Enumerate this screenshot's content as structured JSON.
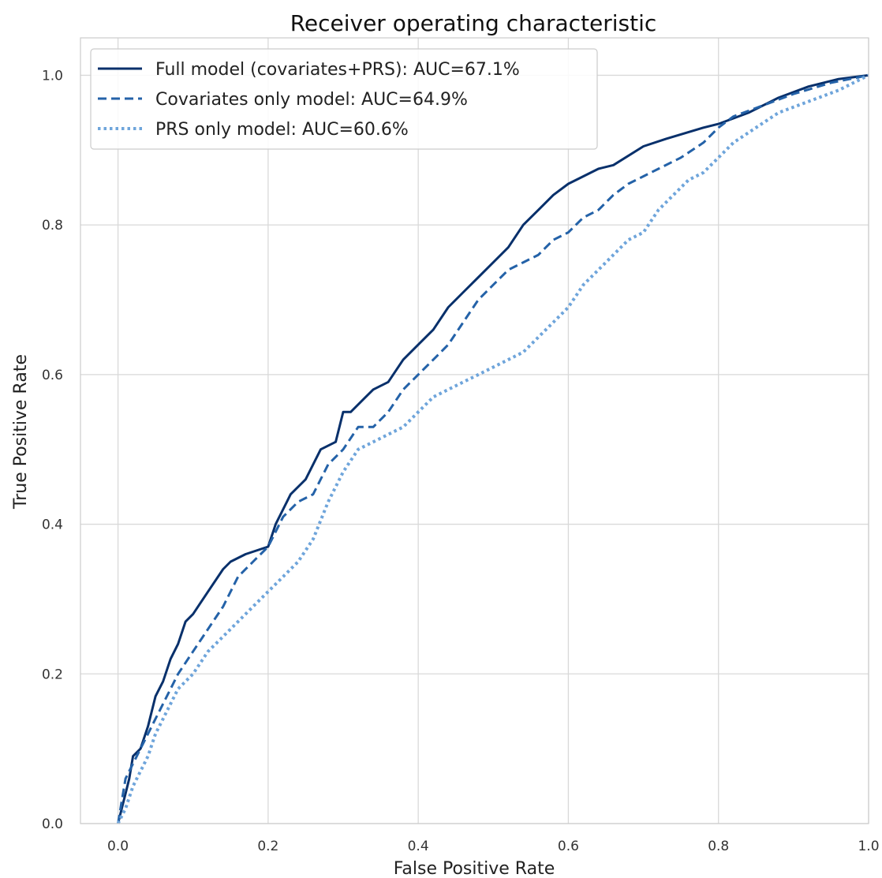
{
  "chart_data": {
    "type": "line",
    "title": "Receiver operating characteristic",
    "xlabel": "False Positive Rate",
    "ylabel": "True Positive Rate",
    "xlim": [
      -0.05,
      1.0
    ],
    "ylim": [
      0.0,
      1.05
    ],
    "xticks": [
      0.0,
      0.2,
      0.4,
      0.6,
      0.8,
      1.0
    ],
    "yticks": [
      0.0,
      0.2,
      0.4,
      0.6,
      0.8,
      1.0
    ],
    "xtick_labels": [
      "0.0",
      "0.2",
      "0.4",
      "0.6",
      "0.8",
      "1.0"
    ],
    "ytick_labels": [
      "0.0",
      "0.2",
      "0.4",
      "0.6",
      "0.8",
      "1.0"
    ],
    "grid": true,
    "legend_position": "top-left",
    "series": [
      {
        "name": "Full model (covariates+PRS): AUC=67.1%",
        "color": "#08306b",
        "dash": "solid",
        "x": [
          0.0,
          0.005,
          0.01,
          0.015,
          0.02,
          0.03,
          0.04,
          0.05,
          0.06,
          0.07,
          0.08,
          0.09,
          0.1,
          0.12,
          0.14,
          0.15,
          0.17,
          0.2,
          0.21,
          0.23,
          0.25,
          0.27,
          0.29,
          0.3,
          0.31,
          0.33,
          0.34,
          0.36,
          0.38,
          0.4,
          0.42,
          0.44,
          0.46,
          0.48,
          0.5,
          0.52,
          0.54,
          0.56,
          0.58,
          0.6,
          0.62,
          0.64,
          0.66,
          0.7,
          0.73,
          0.78,
          0.8,
          0.84,
          0.88,
          0.92,
          0.96,
          1.0
        ],
        "y": [
          0.0,
          0.02,
          0.04,
          0.06,
          0.09,
          0.1,
          0.13,
          0.17,
          0.19,
          0.22,
          0.24,
          0.27,
          0.28,
          0.31,
          0.34,
          0.35,
          0.36,
          0.37,
          0.4,
          0.44,
          0.46,
          0.5,
          0.51,
          0.55,
          0.55,
          0.57,
          0.58,
          0.59,
          0.62,
          0.64,
          0.66,
          0.69,
          0.71,
          0.73,
          0.75,
          0.77,
          0.8,
          0.82,
          0.84,
          0.855,
          0.865,
          0.875,
          0.88,
          0.905,
          0.915,
          0.93,
          0.935,
          0.95,
          0.97,
          0.985,
          0.995,
          1.0
        ]
      },
      {
        "name": "Covariates only model: AUC=64.9%",
        "color": "#2462a8",
        "dash": "dashed",
        "x": [
          0.0,
          0.005,
          0.01,
          0.015,
          0.02,
          0.03,
          0.04,
          0.05,
          0.06,
          0.07,
          0.08,
          0.1,
          0.12,
          0.14,
          0.16,
          0.18,
          0.2,
          0.22,
          0.24,
          0.26,
          0.28,
          0.3,
          0.32,
          0.34,
          0.36,
          0.38,
          0.4,
          0.42,
          0.44,
          0.46,
          0.48,
          0.5,
          0.52,
          0.54,
          0.56,
          0.58,
          0.6,
          0.62,
          0.64,
          0.66,
          0.68,
          0.7,
          0.72,
          0.75,
          0.78,
          0.8,
          0.82,
          0.86,
          0.9,
          0.95,
          1.0
        ],
        "y": [
          0.0,
          0.03,
          0.06,
          0.07,
          0.08,
          0.1,
          0.12,
          0.14,
          0.16,
          0.18,
          0.2,
          0.23,
          0.26,
          0.29,
          0.33,
          0.35,
          0.37,
          0.41,
          0.43,
          0.44,
          0.48,
          0.5,
          0.53,
          0.53,
          0.55,
          0.58,
          0.6,
          0.62,
          0.64,
          0.67,
          0.7,
          0.72,
          0.74,
          0.75,
          0.76,
          0.78,
          0.79,
          0.81,
          0.82,
          0.84,
          0.855,
          0.865,
          0.875,
          0.89,
          0.91,
          0.93,
          0.945,
          0.96,
          0.975,
          0.99,
          1.0
        ]
      },
      {
        "name": "PRS only model: AUC=60.6%",
        "color": "#6fa5db",
        "dash": "dotted",
        "x": [
          0.0,
          0.01,
          0.02,
          0.03,
          0.04,
          0.05,
          0.06,
          0.07,
          0.08,
          0.1,
          0.12,
          0.14,
          0.16,
          0.18,
          0.2,
          0.22,
          0.24,
          0.26,
          0.28,
          0.3,
          0.32,
          0.34,
          0.36,
          0.38,
          0.4,
          0.42,
          0.44,
          0.46,
          0.48,
          0.5,
          0.52,
          0.54,
          0.56,
          0.58,
          0.6,
          0.62,
          0.64,
          0.66,
          0.68,
          0.7,
          0.72,
          0.74,
          0.76,
          0.78,
          0.8,
          0.82,
          0.85,
          0.88,
          0.92,
          0.96,
          1.0
        ],
        "y": [
          0.0,
          0.02,
          0.05,
          0.07,
          0.09,
          0.12,
          0.14,
          0.16,
          0.18,
          0.2,
          0.23,
          0.25,
          0.27,
          0.29,
          0.31,
          0.33,
          0.35,
          0.38,
          0.43,
          0.47,
          0.5,
          0.51,
          0.52,
          0.53,
          0.55,
          0.57,
          0.58,
          0.59,
          0.6,
          0.61,
          0.62,
          0.63,
          0.65,
          0.67,
          0.69,
          0.72,
          0.74,
          0.76,
          0.78,
          0.79,
          0.82,
          0.84,
          0.86,
          0.87,
          0.89,
          0.91,
          0.93,
          0.95,
          0.965,
          0.98,
          1.0
        ]
      }
    ]
  },
  "colors": {
    "background": "#ffffff",
    "grid": "#d9d9d9",
    "frame": "#cccccc",
    "legend_border": "#cccccc"
  }
}
